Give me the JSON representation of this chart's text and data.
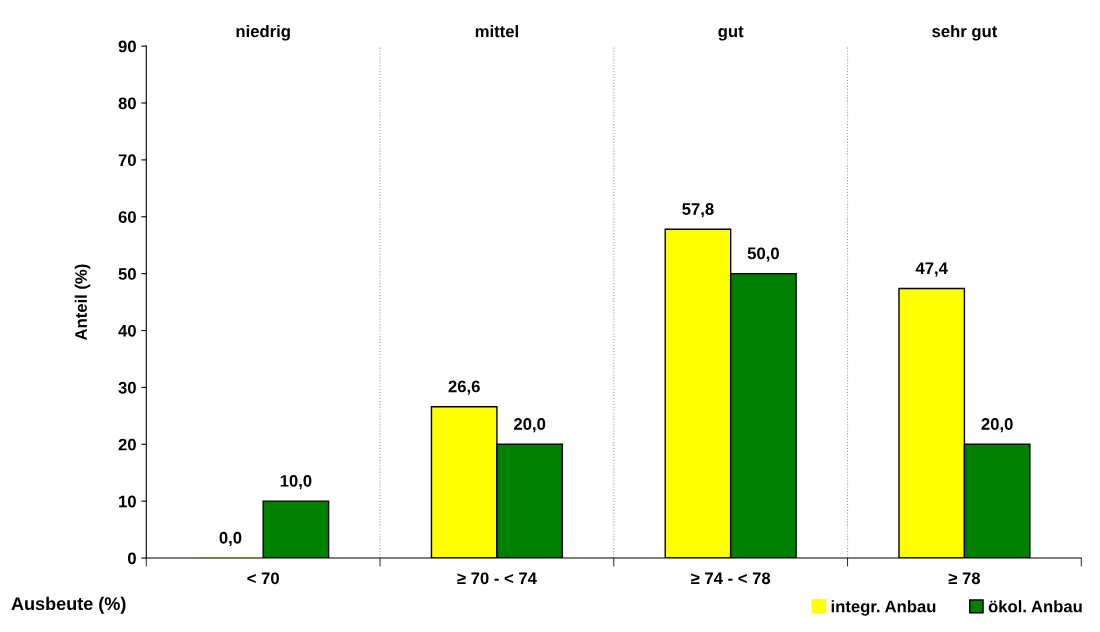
{
  "chart_data": {
    "type": "bar",
    "xlabel": "Ausbeute (%)",
    "ylabel": "Anteil (%)",
    "categories": [
      "< 70",
      "≥ 70 - < 74",
      "≥ 74 - < 78",
      "≥ 78"
    ],
    "series": [
      {
        "name": "integr. Anbau",
        "color": "#ffff00",
        "values": [
          0.0,
          26.6,
          57.8,
          47.4
        ],
        "value_labels": [
          "0,0",
          "26,6",
          "57,8",
          "47,4"
        ]
      },
      {
        "name": "ökol. Anbau",
        "color": "#008000",
        "values": [
          10.0,
          20.0,
          50.0,
          20.0
        ],
        "value_labels": [
          "10,0",
          "20,0",
          "50,0",
          "20,0"
        ]
      }
    ],
    "annotations": [
      "niedrig",
      "mittel",
      "gut",
      "sehr gut"
    ],
    "ylim": [
      0,
      90
    ],
    "yticks": [
      0,
      10,
      20,
      30,
      40,
      50,
      60,
      70,
      80,
      90
    ],
    "grid": false,
    "legend": "bottom right"
  }
}
